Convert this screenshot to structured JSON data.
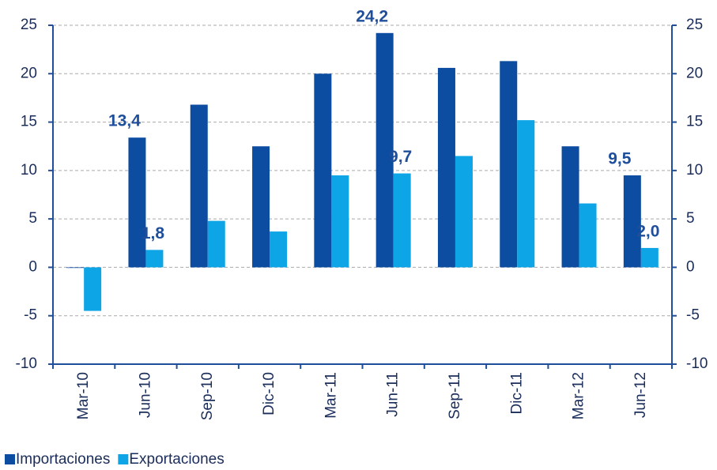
{
  "chart_data": {
    "type": "bar",
    "categories": [
      "Mar-10",
      "Jun-10",
      "Sep-10",
      "Dic-10",
      "Mar-11",
      "Jun-11",
      "Sep-11",
      "Dic-11",
      "Mar-12",
      "Jun-12"
    ],
    "series": [
      {
        "name": "Importaciones",
        "color": "#0c4da2",
        "values": [
          0,
          13.4,
          16.8,
          12.5,
          20.0,
          24.2,
          20.6,
          21.3,
          12.5,
          9.5
        ],
        "value_labels": [
          null,
          "13,4",
          null,
          null,
          null,
          "24,2",
          null,
          null,
          null,
          "9,5"
        ]
      },
      {
        "name": "Exportaciones",
        "color": "#0ea5e6",
        "values": [
          -4.5,
          1.8,
          4.8,
          3.7,
          9.5,
          9.7,
          11.5,
          15.2,
          6.6,
          2.0
        ],
        "value_labels": [
          null,
          "1,8",
          null,
          null,
          null,
          "9,7",
          null,
          null,
          null,
          "2,0"
        ]
      }
    ],
    "ylim": [
      -10,
      25
    ],
    "yticks": [
      -10,
      -5,
      0,
      5,
      10,
      15,
      20,
      25
    ],
    "y2lim": [
      -10,
      25
    ],
    "y2ticks": [
      -10,
      -5,
      0,
      5,
      10,
      15,
      20,
      25
    ],
    "grid": true,
    "legend": "bottom-left"
  }
}
